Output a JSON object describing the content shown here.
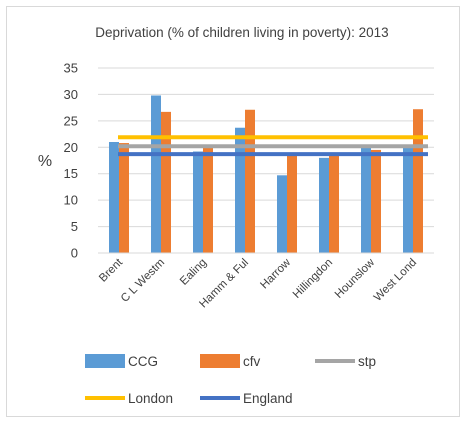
{
  "chart_data": {
    "type": "bar",
    "title": "Deprivation (% of children living in poverty): 2013",
    "ylabel": "%",
    "xlabel": "",
    "ylim": [
      0,
      35
    ],
    "yticks": [
      0,
      5,
      10,
      15,
      20,
      25,
      30,
      35
    ],
    "categories": [
      "Brent",
      "C L Westm",
      "Ealing",
      "Hamm & Ful",
      "Harrow",
      "Hillingdon",
      "Hounslow",
      "West Lond"
    ],
    "series": [
      {
        "name": "CCG",
        "values": [
          21,
          29.8,
          19.2,
          23.7,
          14.7,
          18,
          19.9,
          19.9
        ],
        "color": "#5B9BD5"
      },
      {
        "name": "cfv",
        "values": [
          20.8,
          26.7,
          20,
          27.1,
          18.8,
          18.7,
          19.5,
          27.2
        ],
        "color": "#ED7D31"
      }
    ],
    "reference_lines": [
      {
        "name": "stp",
        "value": 20.2,
        "color": "#A5A5A5"
      },
      {
        "name": "London",
        "value": 21.9,
        "color": "#FFC000"
      },
      {
        "name": "England",
        "value": 18.7,
        "color": "#4472C4"
      }
    ],
    "grid": true,
    "legend": "bottom"
  }
}
